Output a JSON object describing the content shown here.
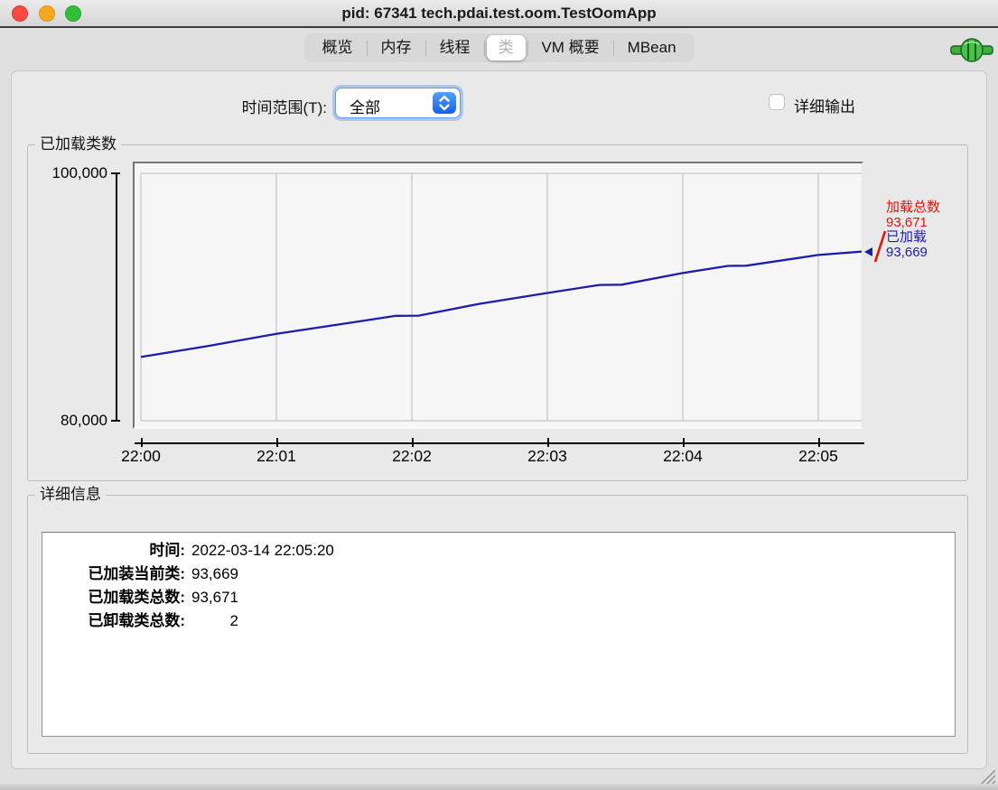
{
  "window": {
    "title": "pid: 67341 tech.pdai.test.oom.TestOomApp"
  },
  "tabs": [
    {
      "id": "overview",
      "label": "概览",
      "selected": false
    },
    {
      "id": "memory",
      "label": "内存",
      "selected": false
    },
    {
      "id": "threads",
      "label": "线程",
      "selected": false
    },
    {
      "id": "classes",
      "label": "类",
      "selected": true
    },
    {
      "id": "vm-summary",
      "label": "VM 概要",
      "selected": false
    },
    {
      "id": "mbean",
      "label": "MBean",
      "selected": false
    }
  ],
  "toolbar": {
    "time_range_label": "时间范围(T):",
    "time_range_value": "全部",
    "verbose_label": "详细输出",
    "verbose_checked": false
  },
  "chart_data": {
    "type": "line",
    "title": "已加载类数",
    "xlabel": "",
    "ylabel": "",
    "ylim": [
      80000,
      100000
    ],
    "y_tick_labels": [
      "100,000",
      "80,000"
    ],
    "x_tick_labels": [
      "22:00",
      "22:01",
      "22:02",
      "22:03",
      "22:04",
      "22:05"
    ],
    "x_seconds_per_tick": 60,
    "grid": true,
    "legend_position": "right",
    "series": [
      {
        "name": "已加载",
        "color": "#1d1dab",
        "points": [
          [
            0,
            85150
          ],
          [
            30,
            86050
          ],
          [
            60,
            87030
          ],
          [
            90,
            87850
          ],
          [
            113,
            88480
          ],
          [
            123,
            88500
          ],
          [
            150,
            89450
          ],
          [
            180,
            90330
          ],
          [
            203,
            90980
          ],
          [
            213,
            91000
          ],
          [
            240,
            91940
          ],
          [
            260,
            92520
          ],
          [
            268,
            92530
          ],
          [
            300,
            93400
          ],
          [
            320,
            93669
          ]
        ]
      }
    ],
    "end_markers": [
      {
        "name": "加载总数",
        "value": "93,671",
        "value_num": 93671,
        "color": "#e1150e"
      },
      {
        "name": "已加载",
        "value": "93,669",
        "value_num": 93669,
        "color": "#1d1dab"
      }
    ]
  },
  "details": {
    "title": "详细信息",
    "rows": [
      {
        "label": "时间:",
        "value": "2022-03-14 22:05:20",
        "numeric": false
      },
      {
        "label": "已加装当前类:",
        "value": "93,669",
        "numeric": true
      },
      {
        "label": "已加载类总数:",
        "value": "93,671",
        "numeric": true
      },
      {
        "label": "已卸载类总数:",
        "value": "2",
        "numeric": true
      }
    ]
  },
  "colors": {
    "series_line": "#1d1dab",
    "total_marker": "#e1150e",
    "gridline": "#c4c4c4",
    "plot_bg": "#f6f6f6"
  },
  "status": {
    "connection_icon": "connected-plug-icon"
  }
}
